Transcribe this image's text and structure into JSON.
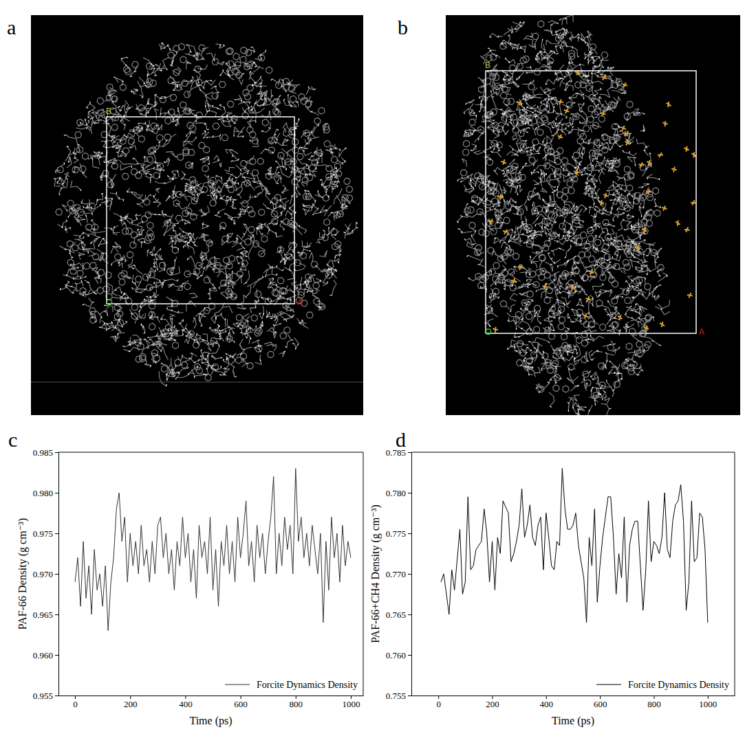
{
  "chart_data": [
    {
      "type": "image",
      "panel_label": "a",
      "axis_labels": [
        {
          "text": "O",
          "color": "#46d646"
        },
        {
          "text": "A",
          "color": "#d02020"
        },
        {
          "text": "B",
          "color": "#c8c850"
        }
      ]
    },
    {
      "type": "image",
      "panel_label": "b",
      "axis_labels": [
        {
          "text": "O",
          "color": "#46d646"
        },
        {
          "text": "A",
          "color": "#d02020"
        },
        {
          "text": "B",
          "color": "#c8c850"
        }
      ]
    },
    {
      "type": "line",
      "panel_label": "c",
      "x_label": "Time (ps)",
      "y_label": "PAF-66 Density (g cm⁻³)",
      "xlim": [
        -60,
        1045
      ],
      "xticks": [
        0,
        200,
        400,
        600,
        800,
        1000
      ],
      "ylim": [
        0.955,
        0.985
      ],
      "yticks": [
        0.955,
        {
          "value": 0.96,
          "label": "0.960"
        },
        0.965,
        {
          "value": 0.97,
          "label": "0.970"
        },
        0.975,
        {
          "value": 0.98,
          "label": "0.980"
        },
        0.985
      ],
      "legend": "bottom-right",
      "x": [
        0,
        10,
        20,
        30,
        40,
        50,
        60,
        70,
        80,
        90,
        100,
        110,
        120,
        130,
        140,
        150,
        160,
        170,
        180,
        190,
        200,
        210,
        220,
        230,
        240,
        250,
        260,
        270,
        280,
        290,
        300,
        310,
        320,
        330,
        340,
        350,
        360,
        370,
        380,
        390,
        400,
        410,
        420,
        430,
        440,
        450,
        460,
        470,
        480,
        490,
        500,
        510,
        520,
        530,
        540,
        550,
        560,
        570,
        580,
        590,
        600,
        610,
        620,
        630,
        640,
        650,
        660,
        670,
        680,
        690,
        700,
        710,
        720,
        730,
        740,
        750,
        760,
        770,
        780,
        790,
        800,
        810,
        820,
        830,
        840,
        850,
        860,
        870,
        880,
        890,
        900,
        910,
        920,
        930,
        940,
        950,
        960,
        970,
        980,
        990,
        1000
      ],
      "series": [
        {
          "name": "Forcite Dynamics Density",
          "color": "#333333",
          "values": [
            0.969,
            0.972,
            0.966,
            0.974,
            0.967,
            0.971,
            0.965,
            0.973,
            0.968,
            0.97,
            0.966,
            0.971,
            0.963,
            0.969,
            0.972,
            0.978,
            0.98,
            0.974,
            0.977,
            0.969,
            0.975,
            0.971,
            0.974,
            0.97,
            0.976,
            0.971,
            0.973,
            0.969,
            0.974,
            0.97,
            0.976,
            0.977,
            0.972,
            0.975,
            0.97,
            0.973,
            0.968,
            0.974,
            0.971,
            0.977,
            0.972,
            0.975,
            0.969,
            0.973,
            0.967,
            0.976,
            0.972,
            0.974,
            0.97,
            0.977,
            0.968,
            0.973,
            0.966,
            0.974,
            0.971,
            0.976,
            0.97,
            0.974,
            0.969,
            0.977,
            0.972,
            0.975,
            0.979,
            0.971,
            0.974,
            0.969,
            0.976,
            0.972,
            0.975,
            0.97,
            0.974,
            0.977,
            0.982,
            0.97,
            0.975,
            0.971,
            0.977,
            0.973,
            0.976,
            0.97,
            0.983,
            0.974,
            0.977,
            0.972,
            0.975,
            0.971,
            0.976,
            0.973,
            0.97,
            0.975,
            0.964,
            0.974,
            0.968,
            0.977,
            0.972,
            0.975,
            0.969,
            0.976,
            0.971,
            0.974,
            0.972
          ]
        }
      ]
    },
    {
      "type": "line",
      "panel_label": "d",
      "x_label": "Time (ps)",
      "y_label": "PAF-66+CH4 Density (g cm⁻³)",
      "xlim": [
        -100,
        1100
      ],
      "xticks": [
        0,
        200,
        400,
        600,
        800,
        1000
      ],
      "ylim": [
        0.755,
        0.785
      ],
      "yticks": [
        0.755,
        {
          "value": 0.76,
          "label": "0.760"
        },
        0.765,
        {
          "value": 0.77,
          "label": "0.770"
        },
        0.775,
        {
          "value": 0.78,
          "label": "0.780"
        },
        0.785
      ],
      "legend": "bottom-right",
      "x": [
        10,
        20,
        40,
        50,
        60,
        80,
        90,
        100,
        110,
        120,
        130,
        140,
        160,
        170,
        180,
        190,
        200,
        210,
        220,
        230,
        240,
        260,
        270,
        280,
        290,
        300,
        310,
        320,
        330,
        340,
        350,
        360,
        370,
        380,
        390,
        400,
        410,
        420,
        430,
        440,
        450,
        460,
        470,
        480,
        490,
        500,
        510,
        520,
        530,
        540,
        550,
        560,
        570,
        580,
        590,
        600,
        610,
        620,
        630,
        640,
        650,
        660,
        670,
        680,
        690,
        700,
        710,
        720,
        730,
        740,
        750,
        760,
        770,
        780,
        790,
        800,
        810,
        820,
        830,
        840,
        850,
        860,
        870,
        880,
        890,
        900,
        910,
        920,
        930,
        940,
        950,
        960,
        970,
        980,
        990,
        1000
      ],
      "series": [
        {
          "name": "Forcite Dynamics Density",
          "color": "#000000",
          "values": [
            0.769,
            0.77,
            0.765,
            0.7705,
            0.768,
            0.7755,
            0.7675,
            0.769,
            0.7795,
            0.7705,
            0.771,
            0.773,
            0.774,
            0.778,
            0.775,
            0.769,
            0.774,
            0.768,
            0.7745,
            0.7725,
            0.779,
            0.7775,
            0.7715,
            0.7725,
            0.774,
            0.776,
            0.7805,
            0.7745,
            0.776,
            0.7785,
            0.7745,
            0.7735,
            0.776,
            0.777,
            0.7705,
            0.7775,
            0.7745,
            0.771,
            0.7705,
            0.774,
            0.7735,
            0.783,
            0.778,
            0.7755,
            0.7755,
            0.776,
            0.7775,
            0.7735,
            0.7715,
            0.7695,
            0.764,
            0.7745,
            0.771,
            0.778,
            0.7665,
            0.771,
            0.7745,
            0.777,
            0.7795,
            0.7795,
            0.7745,
            0.7675,
            0.7725,
            0.7695,
            0.777,
            0.7665,
            0.7735,
            0.7755,
            0.7765,
            0.7765,
            0.771,
            0.7655,
            0.7705,
            0.779,
            0.7715,
            0.774,
            0.7735,
            0.7725,
            0.7745,
            0.78,
            0.773,
            0.772,
            0.7765,
            0.7785,
            0.779,
            0.781,
            0.7765,
            0.7655,
            0.769,
            0.779,
            0.7715,
            0.772,
            0.7775,
            0.777,
            0.773,
            0.764
          ]
        }
      ]
    }
  ]
}
